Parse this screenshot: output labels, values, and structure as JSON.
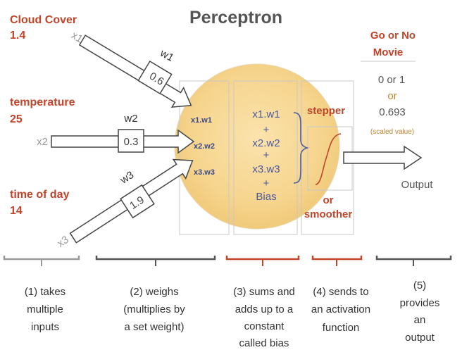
{
  "title": "Perceptron",
  "inputs": [
    {
      "name": "Cloud Cover",
      "value": "1.4",
      "var": "x1",
      "weight_label": "w1",
      "weight": "0.6",
      "product": "x1.w1"
    },
    {
      "name": "temperature",
      "value": "25",
      "var": "x2",
      "weight_label": "w2",
      "weight": "0.3",
      "product": "x2.w2"
    },
    {
      "name": "time of day",
      "value": "14",
      "var": "x3",
      "weight_label": "w3",
      "weight": "1.9",
      "product": "x3.w3"
    }
  ],
  "sum_terms": [
    "x1.w1",
    "+",
    "x2.w2",
    "+",
    "x3.w3",
    "+",
    "Bias"
  ],
  "activation": {
    "label_top": "stepper",
    "label_bottom_1": "or",
    "label_bottom_2": "smoother"
  },
  "output": {
    "title_1": "Go or No",
    "title_2": "Movie",
    "value_1": "0 or 1",
    "or_text": "or",
    "value_2": "0.693",
    "note": "(scaled value)",
    "arrow_label": "Output"
  },
  "steps": [
    {
      "lines": [
        "(1) takes",
        "multiple",
        "inputs"
      ]
    },
    {
      "lines": [
        "(2) weighs",
        "(multiplies by",
        "a set weight)"
      ]
    },
    {
      "lines": [
        "(3) sums and",
        "adds up to a",
        "constant",
        "called bias"
      ]
    },
    {
      "lines": [
        "(4) sends to",
        "an activation",
        "function"
      ]
    },
    {
      "lines": [
        "(5)",
        "provides",
        "an",
        "output"
      ]
    }
  ],
  "colors": {
    "accent": "#c0452a",
    "circle_fill": "#f6d58e",
    "step1_bracket": "#999999",
    "step2_bracket": "#555555",
    "step3_bracket": "#c0452a",
    "step4_bracket": "#c0452a",
    "step5_bracket": "#555555"
  }
}
